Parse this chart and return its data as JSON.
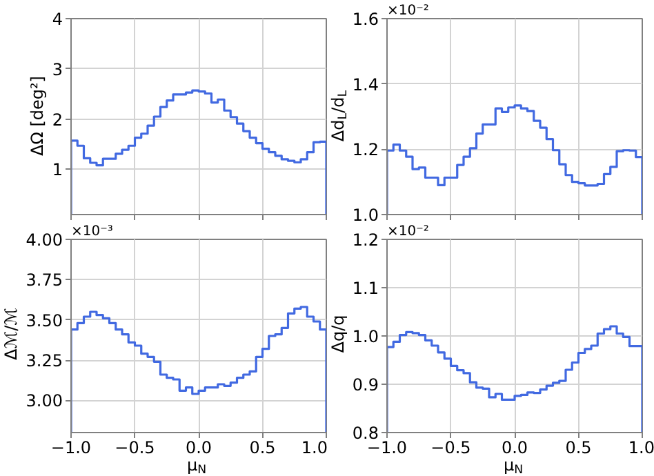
{
  "chart_data": [
    {
      "type": "histogram",
      "ylabel": "ΔΩ [deg²]",
      "color": "#4169e1",
      "bins": [
        -1,
        -0.95,
        -0.9,
        -0.85,
        -0.8,
        -0.75,
        -0.7,
        -0.65,
        -0.6,
        -0.55,
        -0.5,
        -0.45,
        -0.4,
        -0.35,
        -0.3,
        -0.25,
        -0.2,
        -0.15,
        -0.1,
        -0.05,
        0,
        0.05,
        0.1,
        0.15,
        0.2,
        0.25,
        0.3,
        0.35,
        0.4,
        0.45,
        0.5,
        0.55,
        0.6,
        0.65,
        0.7,
        0.75,
        0.8,
        0.85,
        0.9,
        0.95,
        1
      ],
      "values": [
        1.57,
        1.47,
        1.22,
        1.13,
        1.08,
        1.21,
        1.21,
        1.31,
        1.39,
        1.47,
        1.63,
        1.71,
        1.87,
        2.05,
        2.24,
        2.37,
        2.49,
        2.49,
        2.53,
        2.57,
        2.55,
        2.51,
        2.33,
        2.39,
        2.17,
        2.04,
        1.91,
        1.76,
        1.63,
        1.52,
        1.41,
        1.34,
        1.27,
        1.2,
        1.17,
        1.14,
        1.2,
        1.34,
        1.54,
        1.55
      ],
      "xlim": [
        -1,
        1
      ],
      "xticks": [
        -1,
        -0.5,
        0,
        0.5,
        1
      ],
      "ylim": [
        0.1,
        4
      ],
      "yticks": [
        1,
        2,
        3,
        4
      ],
      "grid": true,
      "tick_labels": "y"
    },
    {
      "type": "histogram",
      "ylabel": "Δd$_{L}$/d$_{L}$",
      "annotations": [
        "×10⁻²"
      ],
      "color": "#4169e1",
      "bins": [
        -1,
        -0.95,
        -0.9,
        -0.85,
        -0.8,
        -0.75,
        -0.7,
        -0.65,
        -0.6,
        -0.55,
        -0.5,
        -0.45,
        -0.4,
        -0.35,
        -0.3,
        -0.25,
        -0.2,
        -0.15,
        -0.1,
        -0.05,
        0,
        0.05,
        0.1,
        0.15,
        0.2,
        0.25,
        0.3,
        0.35,
        0.4,
        0.45,
        0.5,
        0.55,
        0.6,
        0.65,
        0.7,
        0.75,
        0.8,
        0.85,
        0.9,
        0.95,
        1
      ],
      "values": [
        1.196,
        1.214,
        1.196,
        1.177,
        1.139,
        1.144,
        1.113,
        1.113,
        1.09,
        1.113,
        1.113,
        1.152,
        1.177,
        1.203,
        1.248,
        1.276,
        1.276,
        1.325,
        1.314,
        1.328,
        1.334,
        1.325,
        1.317,
        1.287,
        1.266,
        1.231,
        1.197,
        1.154,
        1.121,
        1.1,
        1.096,
        1.089,
        1.089,
        1.094,
        1.124,
        1.146,
        1.194,
        1.197,
        1.196,
        1.176
      ],
      "xlim": [
        -1,
        1
      ],
      "xticks": [
        -1,
        -0.5,
        0,
        0.5,
        1
      ],
      "ylim": [
        1.0,
        1.6
      ],
      "yticks": [
        {
          "value": 1.0,
          "label": "1.0"
        },
        1.2,
        1.4,
        1.6
      ],
      "grid": true,
      "tick_labels": "y"
    },
    {
      "type": "histogram",
      "ylabel": "Δℳ/ℳ",
      "xlabel": "μ$_{N}$",
      "annotations": [
        "×10⁻³"
      ],
      "color": "#4169e1",
      "bins": [
        -1,
        -0.95,
        -0.9,
        -0.85,
        -0.8,
        -0.75,
        -0.7,
        -0.65,
        -0.6,
        -0.55,
        -0.5,
        -0.45,
        -0.4,
        -0.35,
        -0.3,
        -0.25,
        -0.2,
        -0.15,
        -0.1,
        -0.05,
        0,
        0.05,
        0.1,
        0.15,
        0.2,
        0.25,
        0.3,
        0.35,
        0.4,
        0.45,
        0.5,
        0.55,
        0.6,
        0.65,
        0.7,
        0.75,
        0.8,
        0.85,
        0.9,
        0.95,
        1
      ],
      "values": [
        3.44,
        3.48,
        3.52,
        3.55,
        3.53,
        3.51,
        3.48,
        3.44,
        3.41,
        3.36,
        3.34,
        3.29,
        3.27,
        3.24,
        3.16,
        3.14,
        3.13,
        3.06,
        3.08,
        3.04,
        3.06,
        3.08,
        3.08,
        3.1,
        3.09,
        3.11,
        3.14,
        3.16,
        3.18,
        3.27,
        3.32,
        3.4,
        3.41,
        3.45,
        3.54,
        3.57,
        3.58,
        3.52,
        3.49,
        3.44
      ],
      "xlim": [
        -1,
        1
      ],
      "xticks": [
        {
          "value": -1,
          "label": "−1.0"
        },
        {
          "value": -0.5,
          "label": "−0.5"
        },
        {
          "value": 0,
          "label": "0.0"
        },
        {
          "value": 0.5,
          "label": "0.5"
        },
        {
          "value": 1,
          "label": "1.0"
        }
      ],
      "ylim": [
        2.8,
        4.0
      ],
      "yticks": [
        {
          "value": 3.0,
          "label": "3.00"
        },
        {
          "value": 3.25,
          "label": "3.25"
        },
        {
          "value": 3.5,
          "label": "3.50"
        },
        {
          "value": 3.75,
          "label": "3.75"
        },
        {
          "value": 4.0,
          "label": "4.00"
        }
      ],
      "grid": true
    },
    {
      "type": "histogram",
      "ylabel": "Δq/q",
      "xlabel": "μ$_{N}$",
      "annotations": [
        "×10⁻²"
      ],
      "color": "#4169e1",
      "bins": [
        -1,
        -0.95,
        -0.9,
        -0.85,
        -0.8,
        -0.75,
        -0.7,
        -0.65,
        -0.6,
        -0.55,
        -0.5,
        -0.45,
        -0.4,
        -0.35,
        -0.3,
        -0.25,
        -0.2,
        -0.15,
        -0.1,
        -0.05,
        0,
        0.05,
        0.1,
        0.15,
        0.2,
        0.25,
        0.3,
        0.35,
        0.4,
        0.45,
        0.5,
        0.55,
        0.6,
        0.65,
        0.7,
        0.75,
        0.8,
        0.85,
        0.9,
        0.95,
        1
      ],
      "values": [
        0.977,
        0.988,
        1.002,
        1.008,
        1.006,
        1.002,
        0.991,
        0.98,
        0.966,
        0.953,
        0.938,
        0.929,
        0.923,
        0.904,
        0.893,
        0.891,
        0.873,
        0.88,
        0.868,
        0.868,
        0.876,
        0.878,
        0.883,
        0.882,
        0.889,
        0.897,
        0.903,
        0.907,
        0.93,
        0.945,
        0.965,
        0.973,
        0.98,
        1.005,
        1.014,
        1.02,
        1.005,
        0.998,
        0.979,
        0.979
      ],
      "xlim": [
        -1,
        1
      ],
      "xticks": [
        {
          "value": -1,
          "label": "−1.0"
        },
        {
          "value": -0.5,
          "label": "−0.5"
        },
        {
          "value": 0,
          "label": "0.0"
        },
        {
          "value": 0.5,
          "label": "0.5"
        },
        {
          "value": 1,
          "label": "1.0"
        }
      ],
      "ylim": [
        0.8,
        1.2
      ],
      "yticks": [
        0.8,
        0.9,
        {
          "value": 1.0,
          "label": "1.0"
        },
        1.1,
        1.2
      ],
      "grid": true
    }
  ]
}
